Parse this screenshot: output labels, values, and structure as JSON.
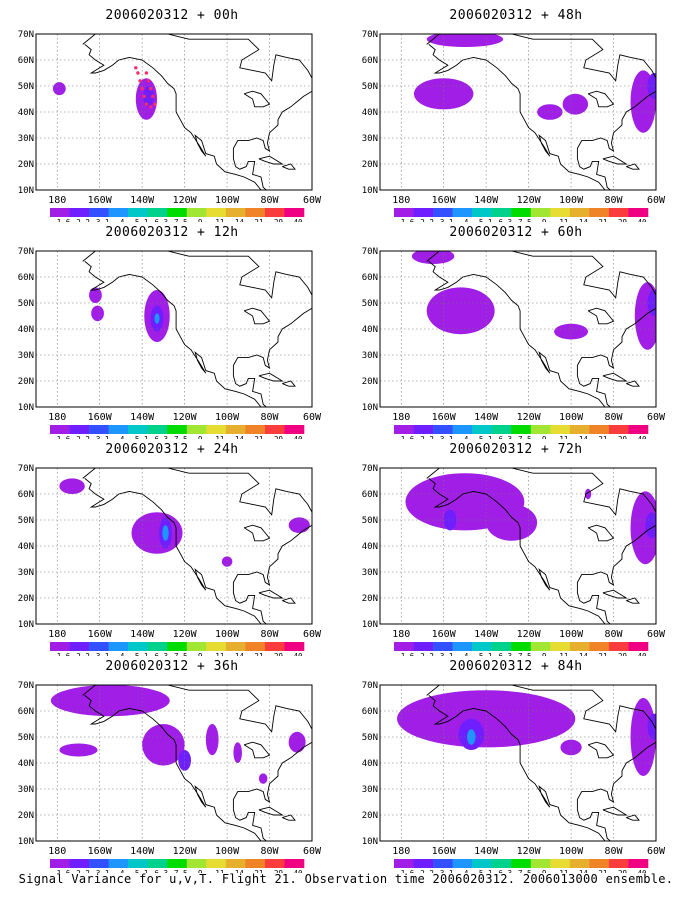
{
  "panels": [
    {
      "title": "2006020312 + 00h",
      "blobs": [
        {
          "lon": -179,
          "lat": 49,
          "rx": 3,
          "ry": 2.5,
          "level": 1
        },
        {
          "lon": -138,
          "lat": 45,
          "rx": 5,
          "ry": 8,
          "level": 1
        },
        {
          "lon": -137,
          "lat": 46,
          "rx": 2.5,
          "ry": 4,
          "level": 2
        }
      ],
      "markers": true
    },
    {
      "title": "2006020312 + 48h",
      "blobs": [
        {
          "lon": -160,
          "lat": 47,
          "rx": 14,
          "ry": 6,
          "level": 1
        },
        {
          "lon": -150,
          "lat": 68,
          "rx": 18,
          "ry": 3,
          "level": 1
        },
        {
          "lon": -110,
          "lat": 40,
          "rx": 6,
          "ry": 3,
          "level": 1
        },
        {
          "lon": -98,
          "lat": 43,
          "rx": 6,
          "ry": 4,
          "level": 1
        },
        {
          "lon": -66,
          "lat": 44,
          "rx": 6,
          "ry": 12,
          "level": 1
        },
        {
          "lon": -61,
          "lat": 50,
          "rx": 3,
          "ry": 5,
          "level": 2
        }
      ],
      "markers": false
    },
    {
      "title": "2006020312 + 12h",
      "blobs": [
        {
          "lon": -162,
          "lat": 53,
          "rx": 3,
          "ry": 3,
          "level": 1
        },
        {
          "lon": -161,
          "lat": 46,
          "rx": 3,
          "ry": 3,
          "level": 1
        },
        {
          "lon": -133,
          "lat": 45,
          "rx": 6,
          "ry": 10,
          "level": 1
        },
        {
          "lon": -133,
          "lat": 44,
          "rx": 3,
          "ry": 5,
          "level": 2
        },
        {
          "lon": -133,
          "lat": 44,
          "rx": 1.2,
          "ry": 2,
          "level": 3
        }
      ],
      "markers": false
    },
    {
      "title": "2006020312 + 60h",
      "blobs": [
        {
          "lon": -152,
          "lat": 47,
          "rx": 16,
          "ry": 9,
          "level": 1
        },
        {
          "lon": -165,
          "lat": 68,
          "rx": 10,
          "ry": 3,
          "level": 1
        },
        {
          "lon": -100,
          "lat": 39,
          "rx": 8,
          "ry": 3,
          "level": 1
        },
        {
          "lon": -64,
          "lat": 45,
          "rx": 6,
          "ry": 13,
          "level": 1
        },
        {
          "lon": -61,
          "lat": 50,
          "rx": 3,
          "ry": 5,
          "level": 2
        }
      ],
      "markers": false
    },
    {
      "title": "2006020312 + 24h",
      "blobs": [
        {
          "lon": -173,
          "lat": 63,
          "rx": 6,
          "ry": 3,
          "level": 1
        },
        {
          "lon": -133,
          "lat": 45,
          "rx": 12,
          "ry": 8,
          "level": 1
        },
        {
          "lon": -129,
          "lat": 45,
          "rx": 3,
          "ry": 6,
          "level": 2
        },
        {
          "lon": -129,
          "lat": 45,
          "rx": 1.5,
          "ry": 3,
          "level": 3
        },
        {
          "lon": -66,
          "lat": 48,
          "rx": 5,
          "ry": 3,
          "level": 1
        },
        {
          "lon": -100,
          "lat": 34,
          "rx": 2.5,
          "ry": 2,
          "level": 1
        }
      ],
      "markers": false
    },
    {
      "title": "2006020312 + 72h",
      "blobs": [
        {
          "lon": -150,
          "lat": 57,
          "rx": 28,
          "ry": 11,
          "level": 1
        },
        {
          "lon": -157,
          "lat": 50,
          "rx": 3,
          "ry": 4,
          "level": 2
        },
        {
          "lon": -128,
          "lat": 49,
          "rx": 12,
          "ry": 7,
          "level": 1
        },
        {
          "lon": -92,
          "lat": 60,
          "rx": 1.5,
          "ry": 2,
          "level": 1
        },
        {
          "lon": -65,
          "lat": 47,
          "rx": 7,
          "ry": 14,
          "level": 1
        },
        {
          "lon": -62,
          "lat": 48,
          "rx": 3,
          "ry": 5,
          "level": 2
        }
      ],
      "markers": false
    },
    {
      "title": "2006020312 + 36h",
      "blobs": [
        {
          "lon": -155,
          "lat": 64,
          "rx": 28,
          "ry": 6,
          "level": 1
        },
        {
          "lon": -170,
          "lat": 45,
          "rx": 9,
          "ry": 2.5,
          "level": 1
        },
        {
          "lon": -130,
          "lat": 47,
          "rx": 10,
          "ry": 8,
          "level": 1
        },
        {
          "lon": -120,
          "lat": 41,
          "rx": 3,
          "ry": 4,
          "level": 2
        },
        {
          "lon": -107,
          "lat": 49,
          "rx": 3,
          "ry": 6,
          "level": 1
        },
        {
          "lon": -95,
          "lat": 44,
          "rx": 2,
          "ry": 4,
          "level": 1
        },
        {
          "lon": -83,
          "lat": 34,
          "rx": 2,
          "ry": 2,
          "level": 1
        },
        {
          "lon": -67,
          "lat": 48,
          "rx": 4,
          "ry": 4,
          "level": 1
        }
      ],
      "markers": false
    },
    {
      "title": "2006020312 + 84h",
      "blobs": [
        {
          "lon": -140,
          "lat": 57,
          "rx": 42,
          "ry": 11,
          "level": 1
        },
        {
          "lon": -147,
          "lat": 51,
          "rx": 6,
          "ry": 6,
          "level": 2
        },
        {
          "lon": -147,
          "lat": 50,
          "rx": 2,
          "ry": 3,
          "level": 3
        },
        {
          "lon": -100,
          "lat": 46,
          "rx": 5,
          "ry": 3,
          "level": 1
        },
        {
          "lon": -66,
          "lat": 50,
          "rx": 6,
          "ry": 15,
          "level": 1
        },
        {
          "lon": -61,
          "lat": 54,
          "rx": 3,
          "ry": 5,
          "level": 2
        }
      ],
      "markers": false
    }
  ],
  "lat_labels": [
    "70N",
    "60N",
    "50N",
    "40N",
    "30N",
    "20N",
    "10N"
  ],
  "lon_labels": [
    "180",
    "160W",
    "140W",
    "120W",
    "100W",
    "80W",
    "60W"
  ],
  "colorbar": {
    "colors": [
      "#a01ee6",
      "#6e1eff",
      "#3250ff",
      "#1e96ff",
      "#00c8c8",
      "#00d28c",
      "#00dc00",
      "#a0e632",
      "#e6dc32",
      "#e6af2d",
      "#f08228",
      "#fa3c3c",
      "#f00082"
    ],
    "labels": [
      "1.6",
      "2.2",
      "3.1",
      "4",
      "5.1",
      "6.3",
      "7.5",
      "9",
      "11",
      "14",
      "21",
      "29",
      "40"
    ]
  },
  "level_colors": {
    "1": "#a01ee6",
    "2": "#6e1eff",
    "3": "#1e96ff"
  },
  "footer": "Signal Variance for u,v,T. Flight 21. Observation time 2006020312. 2006013000 ensemble."
}
